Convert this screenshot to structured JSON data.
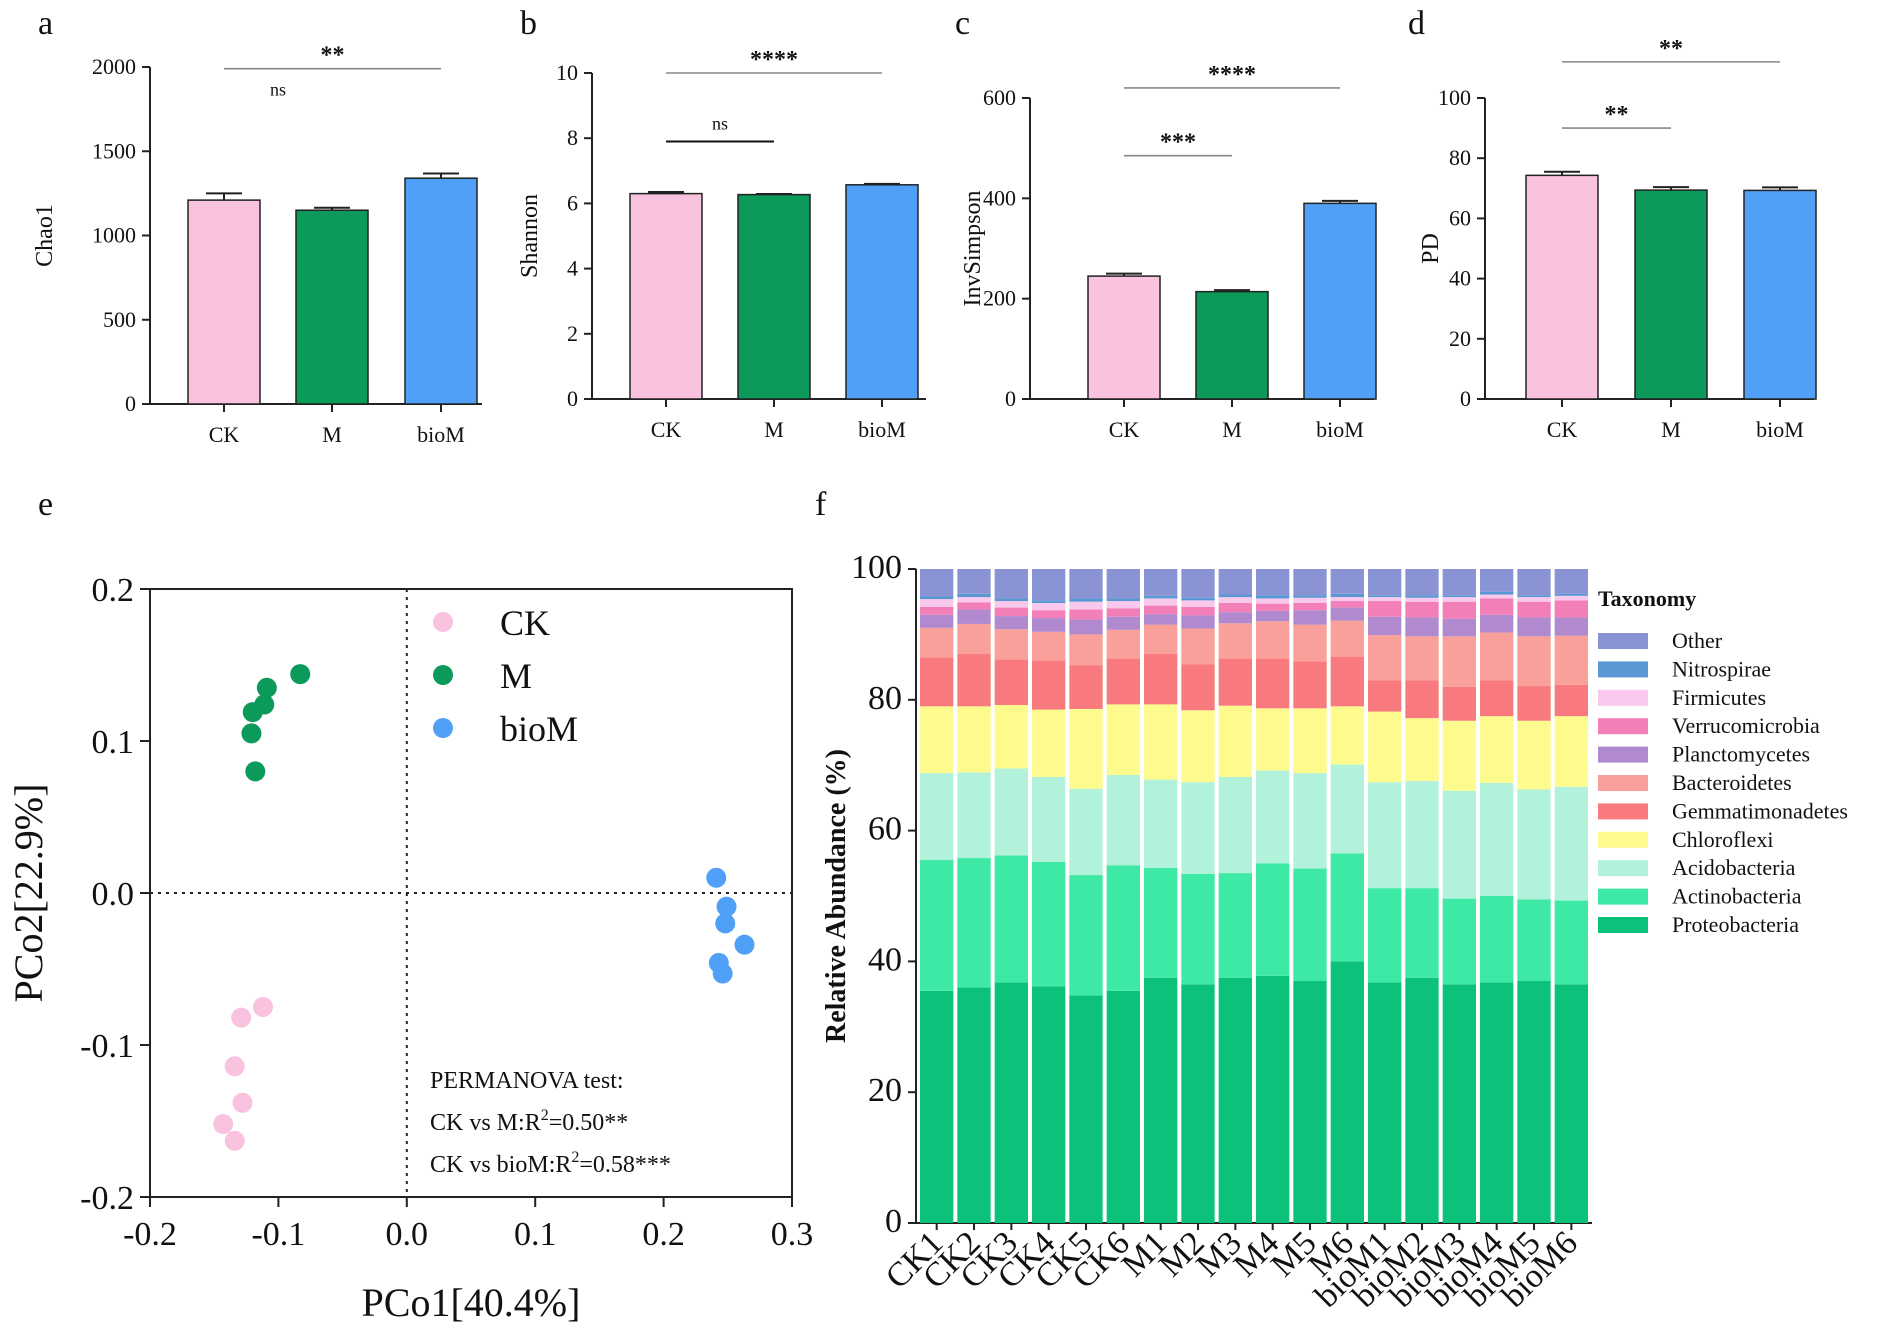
{
  "panel_labels": {
    "a": "a",
    "b": "b",
    "c": "c",
    "d": "d",
    "e": "e",
    "f": "f"
  },
  "colors": {
    "CK": "#F9C3DF",
    "M": "#0C9A5B",
    "bioM": "#50A0F8"
  },
  "chart_data": [
    {
      "id": "a",
      "type": "bar",
      "ylabel": "Chao1",
      "categories": [
        "CK",
        "M",
        "bioM"
      ],
      "values": [
        1210,
        1150,
        1340
      ],
      "errors": [
        40,
        15,
        28
      ],
      "ylim": [
        0,
        2000
      ],
      "yticks": [
        0,
        500,
        1000,
        1500,
        2000
      ],
      "yticklabels": [
        "0",
        "500",
        "1000",
        "1500",
        "2000"
      ],
      "significance": [
        {
          "from": "CK",
          "to": "bioM",
          "label": "**",
          "line": true,
          "y": 1990
        },
        {
          "from": "CK",
          "to": "M",
          "label": "ns",
          "line": false,
          "y": 1760
        }
      ]
    },
    {
      "id": "b",
      "type": "bar",
      "ylabel": "Shannon",
      "categories": [
        "CK",
        "M",
        "bioM"
      ],
      "values": [
        6.3,
        6.27,
        6.57
      ],
      "errors": [
        0.05,
        0.02,
        0.03
      ],
      "ylim": [
        0,
        10
      ],
      "yticks": [
        0,
        2,
        4,
        6,
        8,
        10
      ],
      "yticklabels": [
        "0",
        "2",
        "4",
        "6",
        "8",
        "10"
      ],
      "significance": [
        {
          "from": "CK",
          "to": "bioM",
          "label": "****",
          "line": true,
          "y": 10
        },
        {
          "from": "CK",
          "to": "M",
          "label": "ns",
          "line": true,
          "y": 7.9
        }
      ]
    },
    {
      "id": "c",
      "type": "bar",
      "ylabel": "InvSimpson",
      "categories": [
        "CK",
        "M",
        "bioM"
      ],
      "values": [
        245,
        214,
        390
      ],
      "errors": [
        5,
        3,
        5
      ],
      "ylim": [
        0,
        600
      ],
      "yticks": [
        0,
        200,
        400,
        600
      ],
      "yticklabels": [
        "0",
        "200",
        "400",
        "600"
      ],
      "significance": [
        {
          "from": "CK",
          "to": "bioM",
          "label": "****",
          "line": true,
          "y": 620
        },
        {
          "from": "CK",
          "to": "M",
          "label": "***",
          "line": true,
          "y": 485
        }
      ]
    },
    {
      "id": "d",
      "type": "bar",
      "ylabel": "PD",
      "categories": [
        "CK",
        "M",
        "bioM"
      ],
      "values": [
        74.3,
        69.4,
        69.3
      ],
      "errors": [
        1.2,
        1.0,
        1.0
      ],
      "ylim": [
        0,
        100
      ],
      "yticks": [
        0,
        20,
        40,
        60,
        80,
        100
      ],
      "yticklabels": [
        "0",
        "20",
        "40",
        "60",
        "80",
        "100"
      ],
      "significance": [
        {
          "from": "CK",
          "to": "bioM",
          "label": "**",
          "line": true,
          "y": 112
        },
        {
          "from": "CK",
          "to": "M",
          "label": "**",
          "line": true,
          "y": 90
        }
      ]
    },
    {
      "id": "e",
      "type": "scatter",
      "xlabel": "PCo1[40.4%]",
      "ylabel": "PCo2[22.9%]",
      "xlim": [
        -0.2,
        0.3
      ],
      "ylim": [
        -0.2,
        0.2
      ],
      "xticks": [
        -0.2,
        -0.1,
        0.0,
        0.1,
        0.2,
        0.3
      ],
      "xticklabels": [
        "-0.2",
        "-0.1",
        "0.0",
        "0.1",
        "0.2",
        "0.3"
      ],
      "yticks": [
        -0.2,
        -0.1,
        0.0,
        0.1,
        0.2
      ],
      "yticklabels": [
        "-0.2",
        "-0.1",
        "0.0",
        "0.1",
        "0.2"
      ],
      "series": [
        {
          "name": "CK",
          "points": [
            [
              -0.112,
              -0.075
            ],
            [
              -0.129,
              -0.082
            ],
            [
              -0.134,
              -0.114
            ],
            [
              -0.128,
              -0.138
            ],
            [
              -0.143,
              -0.152
            ],
            [
              -0.134,
              -0.163
            ]
          ]
        },
        {
          "name": "M",
          "points": [
            [
              -0.083,
              0.144
            ],
            [
              -0.109,
              0.135
            ],
            [
              -0.111,
              0.124
            ],
            [
              -0.12,
              0.119
            ],
            [
              -0.121,
              0.105
            ],
            [
              -0.118,
              0.08
            ]
          ]
        },
        {
          "name": "bioM",
          "points": [
            [
              0.241,
              0.01
            ],
            [
              0.249,
              -0.009
            ],
            [
              0.248,
              -0.02
            ],
            [
              0.263,
              -0.034
            ],
            [
              0.243,
              -0.046
            ],
            [
              0.246,
              -0.053
            ]
          ]
        }
      ],
      "annotation": {
        "title": "PERMANOVA test:",
        "line1_prefix": "CK vs M:R",
        "line1_sup": "2",
        "line1_suffix": "=0.50**",
        "line2_prefix": "CK vs bioM:R",
        "line2_sup": "2",
        "line2_suffix": "=0.58***"
      }
    },
    {
      "id": "f",
      "type": "stacked_bar",
      "ylabel": "Relative Abundance (%)",
      "ylim": [
        0,
        100
      ],
      "yticks": [
        0,
        20,
        40,
        60,
        80,
        100
      ],
      "yticklabels": [
        "0",
        "20",
        "40",
        "60",
        "80",
        "100"
      ],
      "legend_title": "Taxonomy",
      "categories": [
        "CK1",
        "CK2",
        "CK3",
        "CK4",
        "CK5",
        "CK6",
        "M1",
        "M2",
        "M3",
        "M4",
        "M5",
        "M6",
        "bioM1",
        "bioM2",
        "bioM3",
        "bioM4",
        "bioM5",
        "bioM6"
      ],
      "series": [
        {
          "name": "Proteobacteria",
          "color": "#0CC17A",
          "values": [
            35.5,
            36.0,
            36.8,
            36.2,
            34.8,
            35.5,
            37.5,
            36.5,
            37.5,
            37.8,
            37.0,
            40.0,
            36.8,
            37.5,
            36.5,
            36.8,
            37.0,
            36.5
          ]
        },
        {
          "name": "Actinobacteria",
          "color": "#3EE9A6",
          "values": [
            20.0,
            19.8,
            19.4,
            19.0,
            18.4,
            19.2,
            16.8,
            16.9,
            16.0,
            17.2,
            17.2,
            16.5,
            14.4,
            13.7,
            13.1,
            13.2,
            12.5,
            12.8
          ]
        },
        {
          "name": "Acidobacteria",
          "color": "#B3F2DA",
          "values": [
            13.3,
            13.1,
            13.3,
            13.0,
            13.2,
            13.8,
            13.5,
            14.0,
            14.7,
            14.2,
            14.6,
            13.6,
            16.2,
            16.4,
            16.5,
            17.3,
            16.8,
            17.4
          ]
        },
        {
          "name": "Chloroflexi",
          "color": "#FDFB8D",
          "values": [
            10.2,
            10.1,
            9.7,
            10.3,
            12.2,
            10.8,
            11.5,
            11.0,
            10.9,
            9.5,
            9.9,
            8.9,
            10.8,
            9.6,
            10.7,
            10.2,
            10.5,
            10.8
          ]
        },
        {
          "name": "Gemmatimonadetes",
          "color": "#F97A7E",
          "values": [
            7.5,
            8.0,
            7.0,
            7.5,
            6.7,
            7.0,
            7.7,
            7.0,
            7.2,
            7.6,
            7.2,
            7.6,
            4.8,
            5.8,
            5.2,
            5.5,
            5.3,
            4.8
          ]
        },
        {
          "name": "Bacteroidetes",
          "color": "#F9A09A",
          "values": [
            4.5,
            4.6,
            4.6,
            4.4,
            4.7,
            4.4,
            4.5,
            5.5,
            5.4,
            5.7,
            5.6,
            5.5,
            6.9,
            6.7,
            7.7,
            7.3,
            7.6,
            7.5
          ]
        },
        {
          "name": "Planctomycetes",
          "color": "#B089CE",
          "values": [
            2.0,
            2.2,
            2.0,
            2.1,
            2.3,
            2.0,
            1.6,
            2.0,
            1.7,
            1.6,
            2.2,
            2.0,
            2.8,
            2.9,
            2.7,
            2.7,
            2.9,
            2.8
          ]
        },
        {
          "name": "Verrucomicrobia",
          "color": "#F27FB7",
          "values": [
            1.2,
            1.1,
            1.3,
            1.2,
            1.5,
            1.3,
            1.3,
            1.3,
            1.4,
            1.1,
            1.1,
            1.0,
            2.4,
            2.4,
            2.6,
            2.5,
            2.4,
            2.6
          ]
        },
        {
          "name": "Firmicutes",
          "color": "#F9C8EC",
          "values": [
            1.2,
            0.8,
            1.0,
            1.1,
            1.2,
            1.1,
            1.1,
            1.0,
            0.9,
            0.8,
            0.8,
            0.6,
            0.6,
            0.6,
            0.7,
            0.6,
            0.7,
            0.7
          ]
        },
        {
          "name": "Nitrospirae",
          "color": "#5A98D4",
          "values": [
            0.4,
            0.5,
            0.4,
            0.4,
            0.5,
            0.4,
            0.4,
            0.4,
            0.4,
            0.5,
            0.4,
            0.5,
            0.3,
            0.4,
            0.3,
            0.4,
            0.3,
            0.3
          ]
        },
        {
          "name": "Other",
          "color": "#8A93D3",
          "values": [
            4.2,
            3.8,
            4.5,
            4.8,
            4.5,
            4.5,
            4.1,
            4.4,
            3.9,
            4.0,
            4.0,
            3.8,
            4.0,
            4.0,
            4.1,
            3.5,
            4.0,
            3.8
          ]
        }
      ]
    }
  ]
}
